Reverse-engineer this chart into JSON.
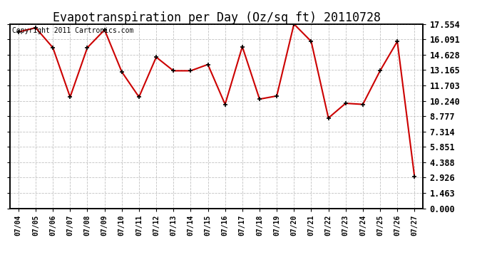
{
  "title": "Evapotranspiration per Day (Oz/sq ft) 20110728",
  "copyright": "Copyright 2011 Cartronics.com",
  "dates": [
    "07/04",
    "07/05",
    "07/06",
    "07/07",
    "07/08",
    "07/09",
    "07/10",
    "07/11",
    "07/12",
    "07/13",
    "07/14",
    "07/15",
    "07/16",
    "07/17",
    "07/18",
    "07/19",
    "07/20",
    "07/21",
    "07/22",
    "07/23",
    "07/24",
    "07/25",
    "07/26",
    "07/27"
  ],
  "values": [
    16.8,
    17.2,
    15.3,
    10.6,
    15.3,
    17.0,
    13.0,
    10.6,
    14.4,
    13.1,
    13.1,
    13.7,
    9.9,
    15.4,
    10.4,
    10.7,
    17.554,
    15.9,
    8.6,
    10.0,
    9.9,
    13.1,
    15.9,
    3.0
  ],
  "line_color": "#cc0000",
  "marker_color": "#000000",
  "bg_color": "#ffffff",
  "plot_bg_color": "#ffffff",
  "grid_color": "#bbbbbb",
  "ylim": [
    0.0,
    17.554
  ],
  "yticks": [
    0.0,
    1.463,
    2.926,
    4.388,
    5.851,
    7.314,
    8.777,
    10.24,
    11.703,
    13.165,
    14.628,
    16.091,
    17.554
  ],
  "ytick_labels": [
    "0.000",
    "1.463",
    "2.926",
    "4.388",
    "5.851",
    "7.314",
    "8.777",
    "10.240",
    "11.703",
    "13.165",
    "14.628",
    "16.091",
    "17.554"
  ],
  "title_fontsize": 12,
  "copyright_fontsize": 7,
  "tick_fontsize": 8.5,
  "xtick_fontsize": 7
}
